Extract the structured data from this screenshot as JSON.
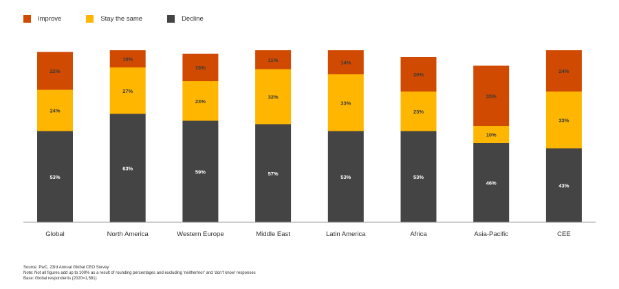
{
  "chart_data": {
    "type": "bar",
    "stacked": true,
    "categories": [
      "Global",
      "North America",
      "Western Europe",
      "Middle East",
      "Latin America",
      "Africa",
      "Asia-Pacific",
      "CEE"
    ],
    "series": [
      {
        "name": "Decline",
        "color": "#444444",
        "values": [
          53,
          63,
          59,
          57,
          53,
          53,
          46,
          43
        ],
        "labels": [
          "53%",
          "63%",
          "59%",
          "57%",
          "53%",
          "53%",
          "46%",
          "43%"
        ]
      },
      {
        "name": "Stay the same",
        "color": "#FFB600",
        "values": [
          24,
          27,
          23,
          32,
          33,
          23,
          10,
          33
        ],
        "labels": [
          "24%",
          "27%",
          "23%",
          "32%",
          "33%",
          "23%",
          "10%",
          "33%"
        ]
      },
      {
        "name": "Improve",
        "color": "#D04A02",
        "values": [
          22,
          10,
          16,
          11,
          14,
          20,
          35,
          24
        ],
        "labels": [
          "22%",
          "10%",
          "16%",
          "11%",
          "14%",
          "20%",
          "35%",
          "24%"
        ]
      }
    ],
    "legend_order": [
      "Improve",
      "Stay the same",
      "Decline"
    ],
    "ylim": [
      0,
      100
    ],
    "grid": false,
    "legend_position": "top-left"
  },
  "footer": {
    "source": "Source: PwC, 23rd Annual Global CEO Survey",
    "note": "Note: Not all figures add up to 100% as a result of rounding percentages and excluding ‘neither/nor’ and ‘don’t know’ responses",
    "base": "Base: Global respondents (2020=1,581)"
  }
}
